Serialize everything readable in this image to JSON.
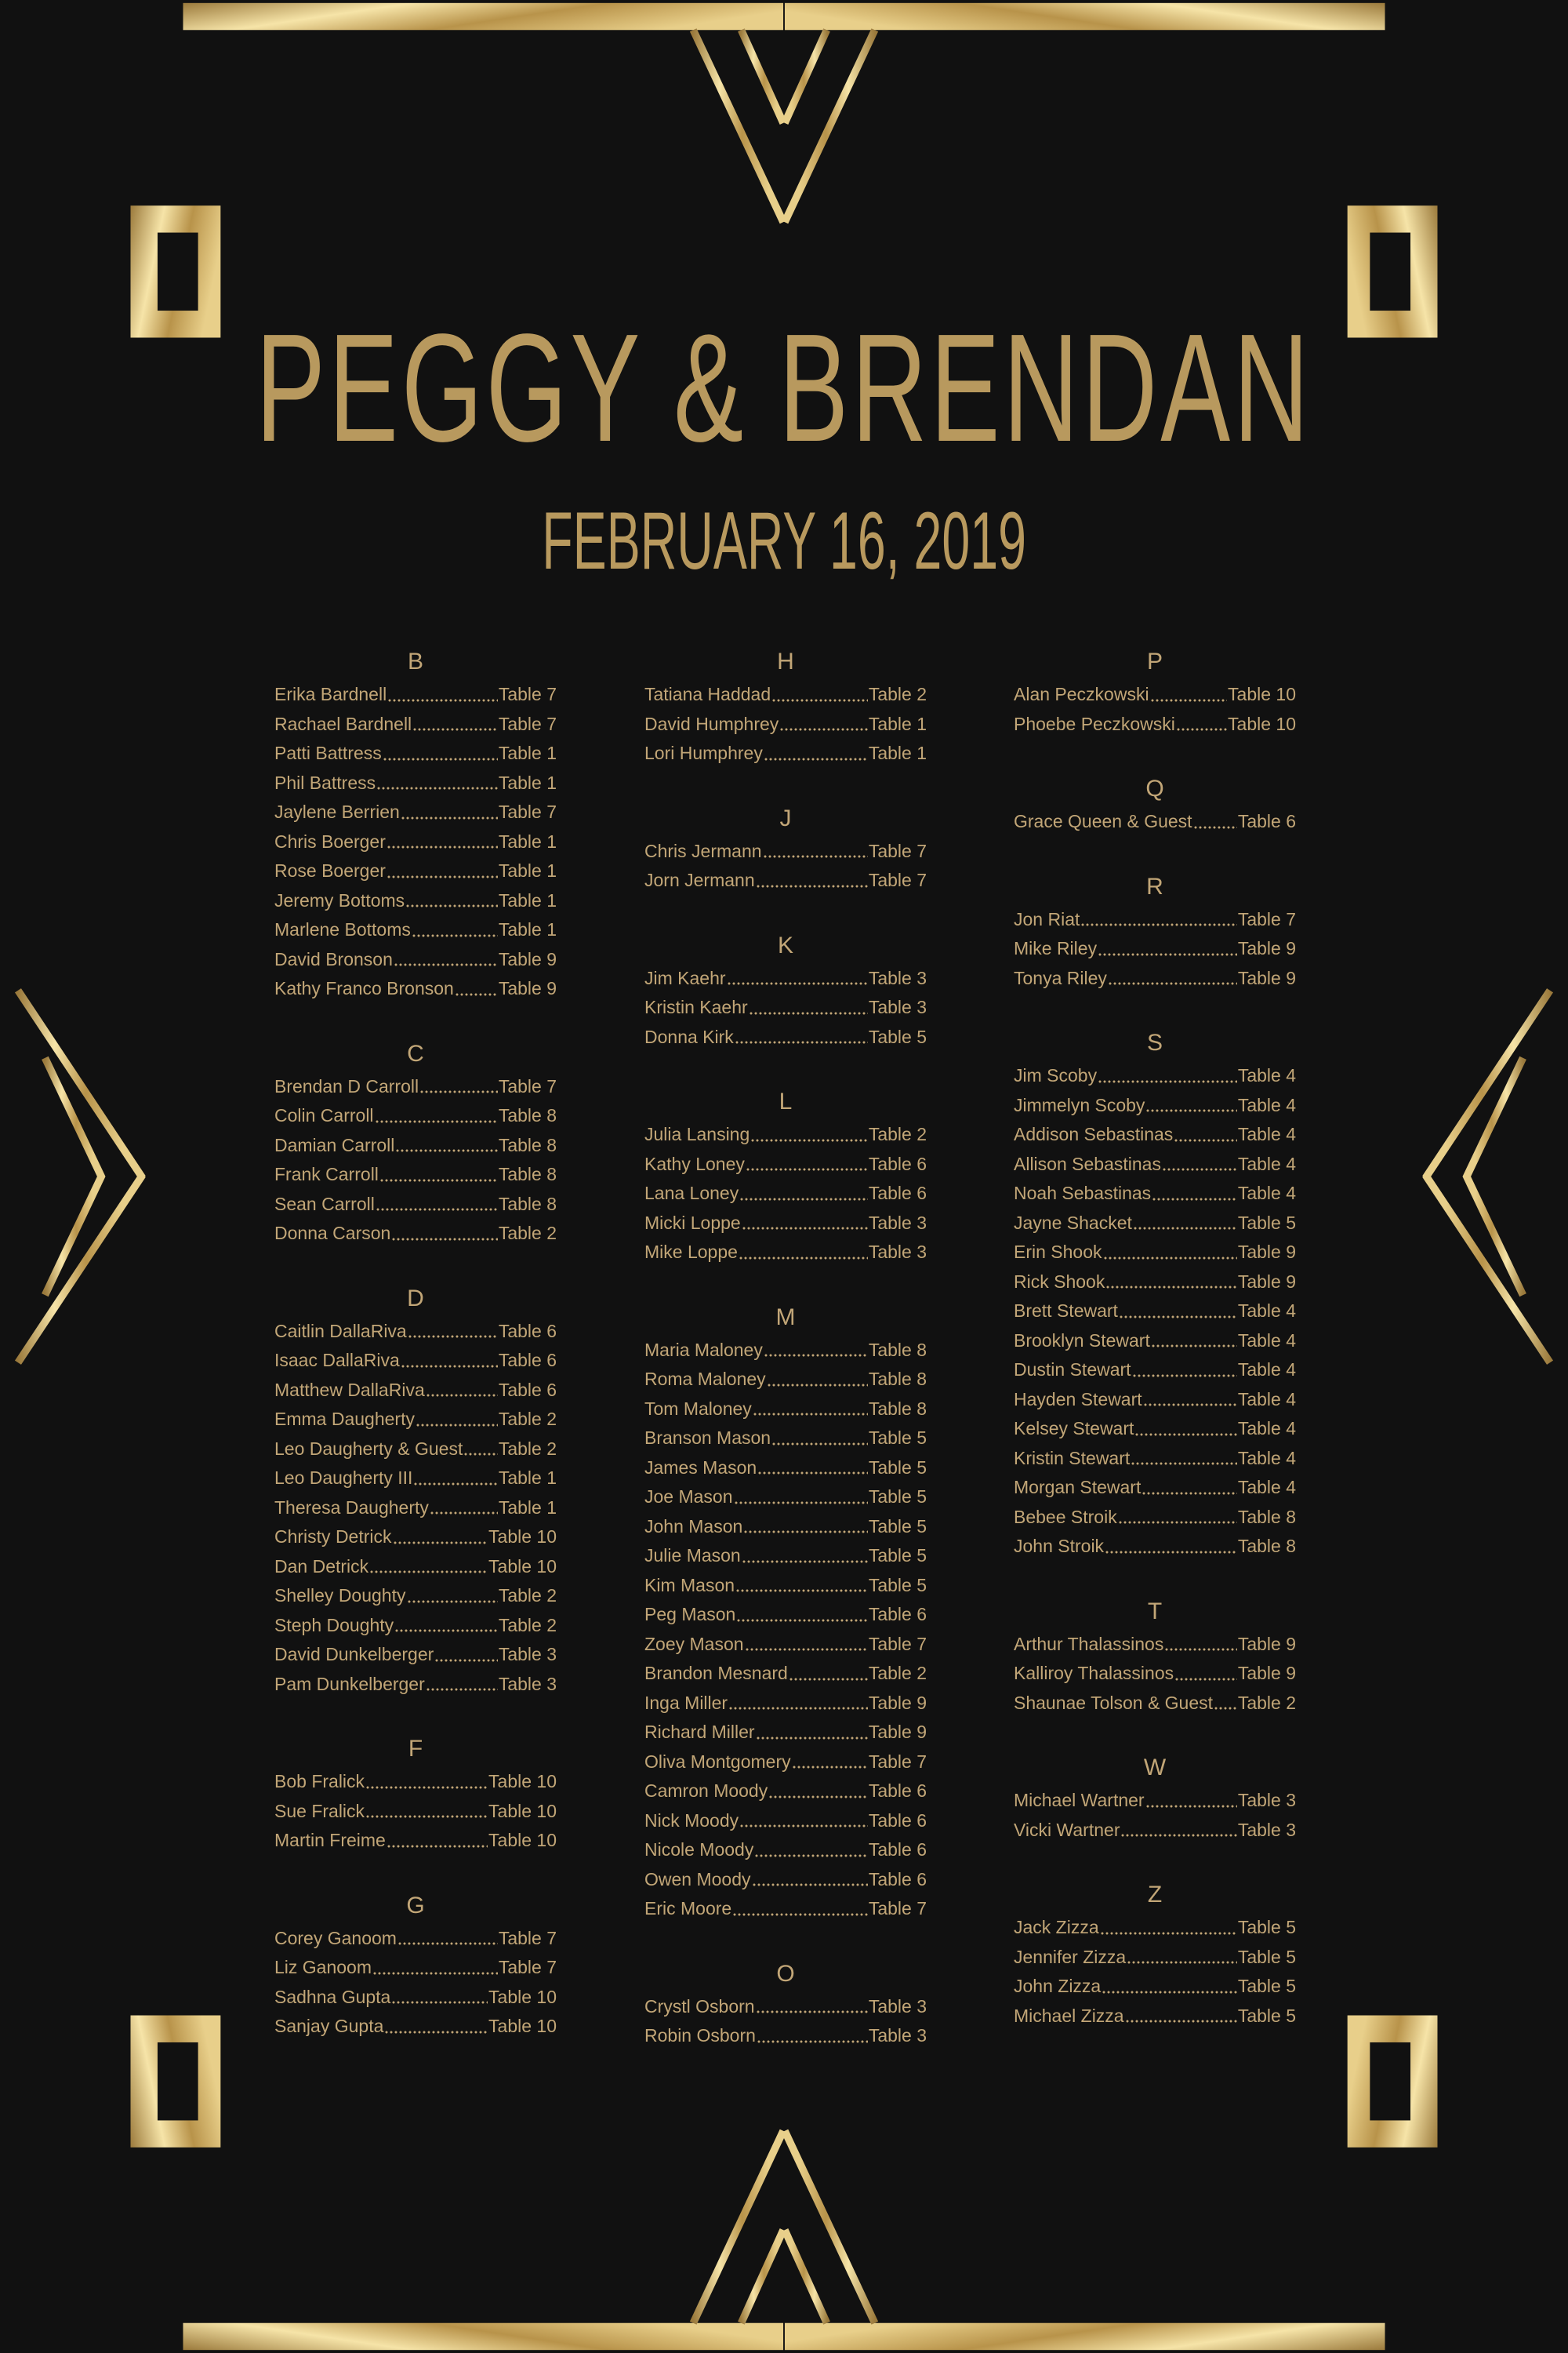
{
  "header": {
    "title": "PEGGY & BRENDAN",
    "date": "FEBRUARY 16, 2019"
  },
  "colors": {
    "background": "#111111",
    "gold": "#c2a677",
    "gold_light": "#f6e4a8",
    "gold_dark": "#9b7a3c"
  },
  "columns": [
    {
      "sections": [
        {
          "letter": "B",
          "guests": [
            {
              "name": "Erika Bardnell",
              "table": "Table 7"
            },
            {
              "name": "Rachael Bardnell",
              "table": "Table 7"
            },
            {
              "name": "Patti Battress",
              "table": "Table 1"
            },
            {
              "name": "Phil Battress",
              "table": "Table 1"
            },
            {
              "name": "Jaylene Berrien",
              "table": "Table 7"
            },
            {
              "name": "Chris Boerger",
              "table": "Table 1"
            },
            {
              "name": "Rose Boerger",
              "table": "Table 1"
            },
            {
              "name": "Jeremy Bottoms",
              "table": "Table 1"
            },
            {
              "name": "Marlene Bottoms",
              "table": "Table 1"
            },
            {
              "name": "David Bronson",
              "table": "Table 9"
            },
            {
              "name": "Kathy Franco Bronson",
              "table": "Table 9"
            }
          ]
        },
        {
          "letter": "C",
          "guests": [
            {
              "name": "Brendan D Carroll",
              "table": "Table 7"
            },
            {
              "name": "Colin Carroll",
              "table": "Table 8"
            },
            {
              "name": "Damian Carroll",
              "table": "Table 8"
            },
            {
              "name": "Frank Carroll",
              "table": "Table 8"
            },
            {
              "name": "Sean Carroll",
              "table": "Table 8"
            },
            {
              "name": "Donna Carson",
              "table": "Table 2"
            }
          ]
        },
        {
          "letter": "D",
          "guests": [
            {
              "name": "Caitlin DallaRiva",
              "table": "Table 6"
            },
            {
              "name": "Isaac DallaRiva",
              "table": "Table 6"
            },
            {
              "name": "Matthew DallaRiva",
              "table": "Table 6"
            },
            {
              "name": "Emma Daugherty",
              "table": "Table 2"
            },
            {
              "name": "Leo Daugherty & Guest",
              "table": "Table 2"
            },
            {
              "name": "Leo Daugherty III",
              "table": "Table 1"
            },
            {
              "name": "Theresa Daugherty",
              "table": "Table 1"
            },
            {
              "name": "Christy Detrick",
              "table": "Table 10"
            },
            {
              "name": "Dan Detrick",
              "table": "Table 10"
            },
            {
              "name": "Shelley Doughty",
              "table": "Table 2"
            },
            {
              "name": "Steph Doughty",
              "table": "Table 2"
            },
            {
              "name": "David Dunkelberger",
              "table": "Table 3"
            },
            {
              "name": "Pam Dunkelberger",
              "table": "Table 3"
            }
          ]
        },
        {
          "letter": "F",
          "guests": [
            {
              "name": "Bob Fralick",
              "table": "Table 10"
            },
            {
              "name": "Sue Fralick",
              "table": "Table 10"
            },
            {
              "name": "Martin Freime",
              "table": "Table 10"
            }
          ]
        },
        {
          "letter": "G",
          "guests": [
            {
              "name": "Corey Ganoom",
              "table": "Table 7"
            },
            {
              "name": "Liz Ganoom",
              "table": "Table 7"
            },
            {
              "name": "Sadhna Gupta",
              "table": "Table 10"
            },
            {
              "name": "Sanjay Gupta",
              "table": "Table 10"
            }
          ]
        }
      ]
    },
    {
      "sections": [
        {
          "letter": "H",
          "guests": [
            {
              "name": "Tatiana Haddad",
              "table": "Table 2"
            },
            {
              "name": "David Humphrey",
              "table": "Table 1"
            },
            {
              "name": "Lori Humphrey",
              "table": "Table 1"
            }
          ]
        },
        {
          "letter": "J",
          "guests": [
            {
              "name": "Chris Jermann",
              "table": "Table 7"
            },
            {
              "name": "Jorn Jermann",
              "table": "Table 7"
            }
          ]
        },
        {
          "letter": "K",
          "guests": [
            {
              "name": "Jim Kaehr",
              "table": "Table 3"
            },
            {
              "name": "Kristin Kaehr",
              "table": "Table 3"
            },
            {
              "name": "Donna Kirk",
              "table": "Table 5"
            }
          ]
        },
        {
          "letter": "L",
          "guests": [
            {
              "name": "Julia Lansing",
              "table": "Table 2"
            },
            {
              "name": "Kathy Loney",
              "table": "Table 6"
            },
            {
              "name": "Lana Loney",
              "table": "Table 6"
            },
            {
              "name": "Micki Loppe",
              "table": "Table 3"
            },
            {
              "name": "Mike Loppe",
              "table": "Table 3"
            }
          ]
        },
        {
          "letter": "M",
          "guests": [
            {
              "name": "Maria Maloney",
              "table": "Table 8"
            },
            {
              "name": "Roma Maloney",
              "table": "Table 8"
            },
            {
              "name": "Tom Maloney",
              "table": "Table 8"
            },
            {
              "name": "Branson Mason",
              "table": "Table 5"
            },
            {
              "name": "James Mason",
              "table": "Table 5"
            },
            {
              "name": "Joe Mason",
              "table": "Table 5"
            },
            {
              "name": "John Mason",
              "table": "Table 5"
            },
            {
              "name": "Julie Mason",
              "table": "Table 5"
            },
            {
              "name": "Kim Mason",
              "table": "Table 5"
            },
            {
              "name": "Peg Mason",
              "table": "Table 6"
            },
            {
              "name": "Zoey Mason",
              "table": "Table 7"
            },
            {
              "name": "Brandon Mesnard",
              "table": "Table 2"
            },
            {
              "name": "Inga Miller",
              "table": "Table 9"
            },
            {
              "name": "Richard Miller",
              "table": "Table 9"
            },
            {
              "name": "Oliva Montgomery",
              "table": "Table 7"
            },
            {
              "name": "Camron Moody",
              "table": "Table 6"
            },
            {
              "name": "Nick Moody",
              "table": "Table 6"
            },
            {
              "name": "Nicole Moody",
              "table": "Table 6"
            },
            {
              "name": "Owen Moody",
              "table": "Table 6"
            },
            {
              "name": "Eric Moore",
              "table": "Table 7"
            }
          ]
        },
        {
          "letter": "O",
          "guests": [
            {
              "name": "Crystl Osborn",
              "table": "Table 3"
            },
            {
              "name": "Robin Osborn",
              "table": "Table 3"
            }
          ]
        }
      ]
    },
    {
      "sections": [
        {
          "letter": "P",
          "guests": [
            {
              "name": "Alan Peczkowski",
              "table": "Table 10"
            },
            {
              "name": "Phoebe Peczkowski",
              "table": "Table 10"
            }
          ]
        },
        {
          "letter": "Q",
          "guests": [
            {
              "name": "Grace Queen & Guest",
              "table": "Table 6"
            }
          ]
        },
        {
          "letter": "R",
          "guests": [
            {
              "name": "Jon Riat",
              "table": "Table 7"
            },
            {
              "name": "Mike Riley",
              "table": "Table 9"
            },
            {
              "name": "Tonya Riley",
              "table": "Table 9"
            }
          ]
        },
        {
          "letter": "S",
          "guests": [
            {
              "name": "Jim Scoby",
              "table": "Table 4"
            },
            {
              "name": "Jimmelyn Scoby",
              "table": "Table 4"
            },
            {
              "name": "Addison Sebastinas",
              "table": "Table 4"
            },
            {
              "name": "Allison Sebastinas",
              "table": "Table 4"
            },
            {
              "name": "Noah Sebastinas",
              "table": "Table 4"
            },
            {
              "name": "Jayne Shacket",
              "table": "Table 5"
            },
            {
              "name": "Erin Shook",
              "table": "Table 9"
            },
            {
              "name": "Rick Shook",
              "table": "Table 9"
            },
            {
              "name": "Brett Stewart",
              "table": "Table 4"
            },
            {
              "name": "Brooklyn Stewart",
              "table": "Table 4"
            },
            {
              "name": "Dustin Stewart",
              "table": "Table 4"
            },
            {
              "name": "Hayden Stewart",
              "table": "Table 4"
            },
            {
              "name": "Kelsey Stewart",
              "table": "Table 4"
            },
            {
              "name": "Kristin Stewart",
              "table": "Table 4"
            },
            {
              "name": "Morgan Stewart",
              "table": "Table 4"
            },
            {
              "name": "Bebee Stroik",
              "table": "Table 8"
            },
            {
              "name": "John Stroik",
              "table": "Table 8"
            }
          ]
        },
        {
          "letter": "T",
          "guests": [
            {
              "name": "Arthur Thalassinos",
              "table": "Table 9"
            },
            {
              "name": "Kalliroy Thalassinos",
              "table": "Table 9"
            },
            {
              "name": "Shaunae Tolson & Guest",
              "table": "Table 2"
            }
          ]
        },
        {
          "letter": "W",
          "guests": [
            {
              "name": "Michael Wartner",
              "table": "Table 3"
            },
            {
              "name": "Vicki Wartner",
              "table": "Table 3"
            }
          ]
        },
        {
          "letter": "Z",
          "guests": [
            {
              "name": "Jack Zizza",
              "table": "Table 5"
            },
            {
              "name": "Jennifer Zizza",
              "table": "Table 5"
            },
            {
              "name": "John Zizza",
              "table": "Table 5"
            },
            {
              "name": "Michael Zizza",
              "table": "Table 5"
            }
          ]
        }
      ]
    }
  ]
}
